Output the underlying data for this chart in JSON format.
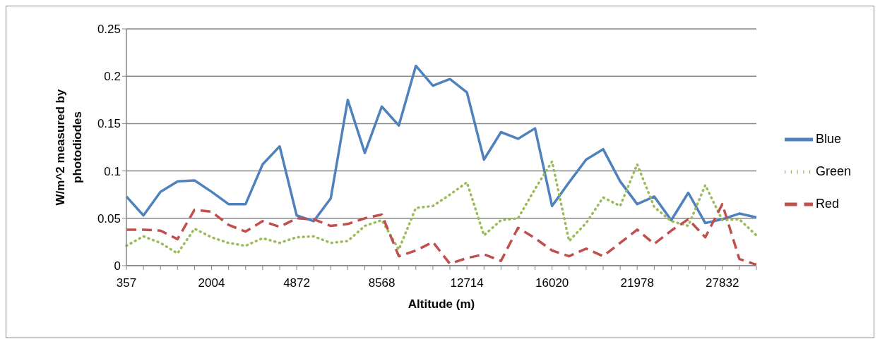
{
  "chart_data": {
    "type": "line",
    "xlabel": "Altitude (m)",
    "ylabel": "W/m^2 measured by photodiodes",
    "categories": [
      "357",
      null,
      null,
      null,
      null,
      "2004",
      null,
      null,
      null,
      null,
      "4872",
      null,
      null,
      null,
      null,
      "8568",
      null,
      null,
      null,
      null,
      "12714",
      null,
      null,
      null,
      null,
      "16020",
      null,
      null,
      null,
      null,
      "21978",
      null,
      null,
      null,
      null,
      "27832",
      null,
      null
    ],
    "ylim": [
      0,
      0.25
    ],
    "yticks": [
      0,
      0.05,
      0.1,
      0.15,
      0.2,
      0.25
    ],
    "grid": "y",
    "legend": "right",
    "marker": "none",
    "series": [
      {
        "name": "Blue",
        "color": "#4f81bd",
        "line_style": "solid",
        "values": [
          0.073,
          0.053,
          0.078,
          0.089,
          0.09,
          0.078,
          0.065,
          0.065,
          0.107,
          0.126,
          0.053,
          0.047,
          0.071,
          0.175,
          0.119,
          0.168,
          0.148,
          0.211,
          0.19,
          0.197,
          0.183,
          0.112,
          0.141,
          0.134,
          0.145,
          0.063,
          0.088,
          0.112,
          0.123,
          0.089,
          0.065,
          0.073,
          0.048,
          0.077,
          0.045,
          0.049,
          0.055,
          0.051
        ]
      },
      {
        "name": "Green",
        "color": "#9bbb59",
        "line_style": "dotted",
        "values": [
          0.021,
          0.031,
          0.024,
          0.013,
          0.039,
          0.03,
          0.024,
          0.021,
          0.029,
          0.024,
          0.03,
          0.031,
          0.024,
          0.026,
          0.042,
          0.048,
          0.017,
          0.061,
          0.063,
          0.075,
          0.088,
          0.032,
          0.048,
          0.05,
          0.081,
          0.11,
          0.026,
          0.045,
          0.072,
          0.063,
          0.107,
          0.062,
          0.047,
          0.042,
          0.085,
          0.048,
          0.049,
          0.032
        ]
      },
      {
        "name": "Red",
        "color": "#c0504d",
        "line_style": "dashed",
        "values": [
          0.038,
          0.038,
          0.037,
          0.028,
          0.059,
          0.057,
          0.043,
          0.036,
          0.047,
          0.041,
          0.05,
          0.049,
          0.042,
          0.044,
          0.05,
          0.054,
          0.01,
          0.016,
          0.025,
          0.002,
          0.008,
          0.012,
          0.005,
          0.04,
          0.029,
          0.016,
          0.01,
          0.018,
          0.01,
          0.024,
          0.038,
          0.023,
          0.037,
          0.049,
          0.03,
          0.065,
          0.007,
          0.001
        ]
      }
    ]
  }
}
